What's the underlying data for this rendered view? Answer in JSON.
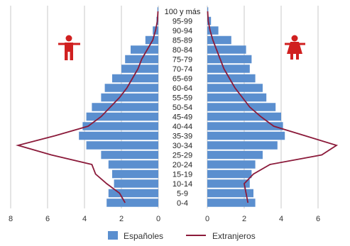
{
  "chart_data": {
    "type": "bar",
    "orientation": "horizontal",
    "layout": "population-pyramid",
    "title": "",
    "age_groups": [
      "0-4",
      "5-9",
      "10-14",
      "15-19",
      "20-24",
      "25-29",
      "30-34",
      "35-39",
      "40-44",
      "45-49",
      "50-54",
      "55-59",
      "60-64",
      "65-69",
      "70-74",
      "75-79",
      "80-84",
      "85-89",
      "90-94",
      "95-99",
      "100 y más"
    ],
    "x_ticks_left": [
      "8",
      "6",
      "4",
      "2",
      "0"
    ],
    "x_ticks_right": [
      "0",
      "2",
      "4",
      "6"
    ],
    "xlim_left": [
      0,
      8
    ],
    "xlim_right": [
      0,
      7
    ],
    "grid": "vertical",
    "legend_position": "bottom",
    "series": [
      {
        "name": "Españoles",
        "kind": "bar",
        "color": "#5b8fcf",
        "left_values": [
          2.8,
          2.7,
          2.4,
          2.5,
          2.7,
          3.1,
          3.9,
          4.3,
          4.1,
          3.9,
          3.6,
          3.1,
          2.9,
          2.5,
          2.0,
          1.8,
          1.5,
          0.7,
          0.3,
          0.1,
          0.05
        ],
        "right_values": [
          2.6,
          2.5,
          2.3,
          2.4,
          2.6,
          3.0,
          3.8,
          4.2,
          4.1,
          4.0,
          3.7,
          3.2,
          3.0,
          2.6,
          2.3,
          2.4,
          2.1,
          1.3,
          0.6,
          0.2,
          0.05
        ]
      },
      {
        "name": "Extranjeros",
        "kind": "line",
        "color": "#8b1a3a",
        "left_values": [
          1.8,
          2.1,
          2.8,
          3.4,
          3.6,
          5.8,
          7.6,
          5.6,
          3.8,
          3.1,
          2.6,
          2.1,
          1.7,
          1.4,
          1.1,
          0.9,
          0.6,
          0.3,
          0.15,
          0.05,
          0.02
        ],
        "right_values": [
          2.2,
          2.1,
          2.0,
          2.5,
          3.4,
          6.2,
          7.0,
          5.3,
          3.6,
          2.9,
          2.3,
          1.9,
          1.5,
          1.2,
          0.9,
          0.7,
          0.5,
          0.3,
          0.15,
          0.05,
          0.02
        ]
      }
    ]
  },
  "icons": {
    "left": "male-figure-icon",
    "right": "female-figure-icon",
    "color": "#d02020"
  }
}
